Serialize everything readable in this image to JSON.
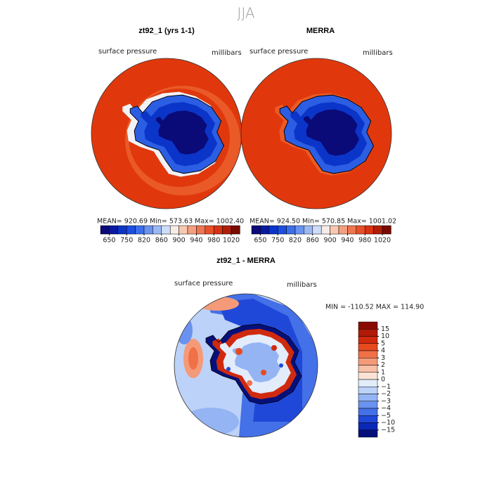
{
  "title": "JJA",
  "panels": [
    {
      "title": "zt92_1 (yrs 1-1)",
      "variable": "surface pressure",
      "units": "millibars",
      "stats": "MEAN= 920.69   Min= 573.63   Max= 1002.40"
    },
    {
      "title": "MERRA",
      "variable": "surface pressure",
      "units": "millibars",
      "stats": "MEAN= 924.50   Min= 570.85   Max= 1001.02"
    }
  ],
  "colorbar": {
    "colors": [
      "#0a0a78",
      "#0a1aa0",
      "#0b35c8",
      "#1c4ee0",
      "#3e6ee8",
      "#6a92f0",
      "#9cb8f5",
      "#cddcf8",
      "#f6ece6",
      "#f8c8b0",
      "#f4a080",
      "#ee7650",
      "#e8502a",
      "#d83412",
      "#b01e08",
      "#7a0a00"
    ],
    "ticks": [
      650,
      750,
      820,
      860,
      900,
      940,
      980,
      1020
    ]
  },
  "difference": {
    "title": "zt92_1 - MERRA",
    "variable": "surface pressure",
    "units": "millibars",
    "stats": "MIN = -110.52 MAX = 114.90",
    "colorbar": {
      "colors": [
        "#8a0a00",
        "#b01a08",
        "#d02a0e",
        "#e84a20",
        "#f07048",
        "#f49a78",
        "#f8c0a8",
        "#fbe2d6",
        "#e2ecfb",
        "#bcd2f8",
        "#94b4f4",
        "#6a92f0",
        "#4470e8",
        "#2048d8",
        "#0c28b8",
        "#06107a"
      ],
      "ticks": [
        15,
        10,
        5,
        4,
        3,
        2,
        1,
        0,
        {
          "value": -1,
          "label": "−1"
        },
        {
          "value": -2,
          "label": "−2"
        },
        {
          "value": -3,
          "label": "−3"
        },
        {
          "value": -4,
          "label": "−4"
        },
        {
          "value": -5,
          "label": "−5"
        },
        {
          "value": -10,
          "label": "−10"
        },
        {
          "value": -15,
          "label": "−15"
        }
      ]
    }
  }
}
